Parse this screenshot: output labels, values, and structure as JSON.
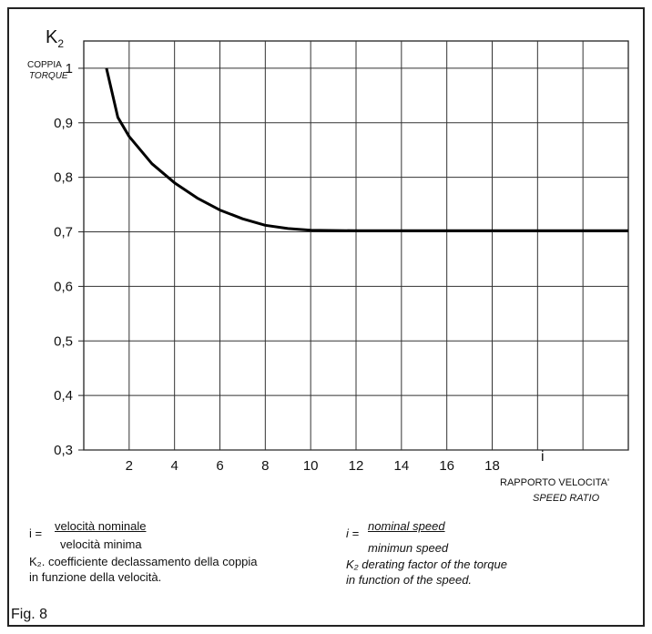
{
  "chart_data": {
    "type": "line",
    "title": "",
    "ylabel_symbol": "K",
    "ylabel_subscript": "2",
    "ylabel_it": "COPPIA",
    "ylabel_en": "TORQUE",
    "xlabel_symbol": "i",
    "xlabel_it": "RAPPORTO VELOCITA'",
    "xlabel_en": "SPEED RATIO",
    "xlim": [
      0,
      24
    ],
    "ylim": [
      0.3,
      1.05
    ],
    "grid": true,
    "x_ticks": [
      2,
      4,
      6,
      8,
      10,
      12,
      14,
      16,
      18
    ],
    "x_tick_labels": [
      "2",
      "4",
      "6",
      "8",
      "10",
      "12",
      "14",
      "16",
      "18"
    ],
    "y_ticks": [
      0.3,
      0.4,
      0.5,
      0.6,
      0.7,
      0.8,
      0.9,
      1.0
    ],
    "y_tick_labels": [
      "0,3",
      "0,4",
      "0,5",
      "0,6",
      "0,7",
      "0,8",
      "0,9",
      "1"
    ],
    "series": [
      {
        "x": [
          1,
          1.5,
          2,
          3,
          4,
          5,
          6,
          7,
          8,
          9,
          10,
          12,
          14,
          16,
          18,
          20,
          22,
          24
        ],
        "y": [
          1.0,
          0.91,
          0.875,
          0.825,
          0.79,
          0.762,
          0.74,
          0.724,
          0.712,
          0.706,
          0.703,
          0.702,
          0.702,
          0.702,
          0.702,
          0.702,
          0.702,
          0.702
        ]
      }
    ]
  },
  "legend": {
    "it_formula_lhs": "i =",
    "it_numerator": "velocità nominale",
    "it_denominator": "velocità minima",
    "it_line1": "K₂. coefficiente declassamento della coppia",
    "it_line2": "in funzione della velocità.",
    "en_formula_lhs": "i =",
    "en_numerator": "nominal speed",
    "en_denominator": "minimun speed",
    "en_line1": "K₂ derating factor of the torque",
    "en_line2": "in function of the speed."
  },
  "figure_label": "Fig. 8"
}
